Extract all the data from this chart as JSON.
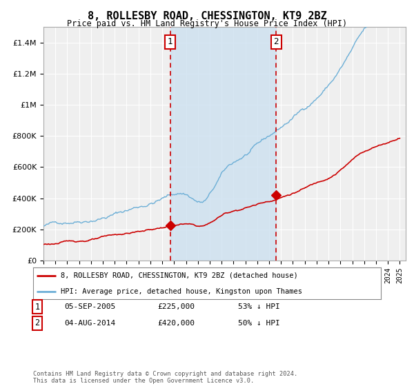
{
  "title": "8, ROLLESBY ROAD, CHESSINGTON, KT9 2BZ",
  "subtitle": "Price paid vs. HM Land Registry's House Price Index (HPI)",
  "legend_entry1": "8, ROLLESBY ROAD, CHESSINGTON, KT9 2BZ (detached house)",
  "legend_entry2": "HPI: Average price, detached house, Kingston upon Thames",
  "annotation1_label": "1",
  "annotation1_date": "05-SEP-2005",
  "annotation1_price": "£225,000",
  "annotation1_hpi": "53% ↓ HPI",
  "annotation1_year": 2005.67,
  "annotation1_value": 225000,
  "annotation2_label": "2",
  "annotation2_date": "04-AUG-2014",
  "annotation2_price": "£420,000",
  "annotation2_hpi": "50% ↓ HPI",
  "annotation2_year": 2014.58,
  "annotation2_value": 420000,
  "footer": "Contains HM Land Registry data © Crown copyright and database right 2024.\nThis data is licensed under the Open Government Licence v3.0.",
  "hpi_color": "#6baed6",
  "price_color": "#cc0000",
  "background_color": "#ffffff",
  "plot_bg_color": "#efefef",
  "shade_color": "#cce0f0",
  "vline_color": "#cc0000",
  "ylim": [
    0,
    1500000
  ],
  "xlim_start": 1995,
  "xlim_end": 2025.5
}
